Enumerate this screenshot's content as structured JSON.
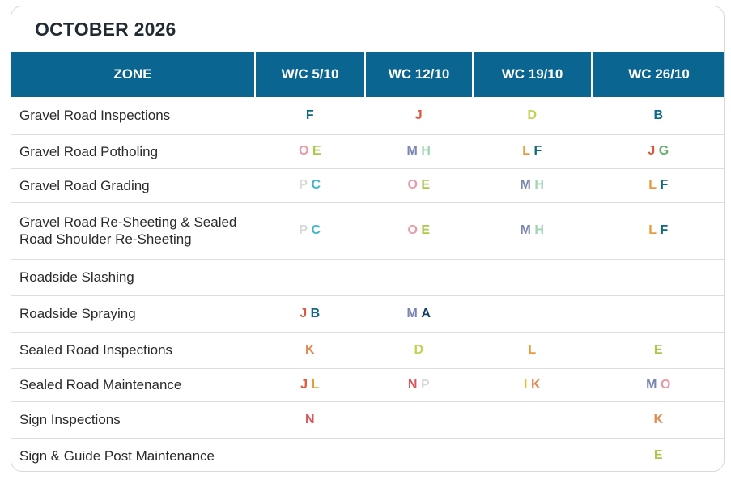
{
  "title": "OCTOBER 2026",
  "columns": [
    "ZONE",
    "W/C 5/10",
    "WC 12/10",
    "WC 19/10",
    "WC 26/10"
  ],
  "zone_colors": {
    "A": "#123c6a",
    "B": "#0d6a86",
    "C": "#3bb7c9",
    "D": "#c4d14f",
    "E": "#aac84a",
    "F": "#0e6a7a",
    "G": "#62b06b",
    "H": "#9ed6b2",
    "I": "#e8c12c",
    "J": "#e0573b",
    "K": "#e08a52",
    "L": "#e89b3c",
    "M": "#7a84b2",
    "N": "#d8585e",
    "O": "#e99aa4",
    "P": "#d9d9d9"
  },
  "rows": [
    {
      "task": "Gravel Road Inspections",
      "cells": [
        [
          "F"
        ],
        [
          "J"
        ],
        [
          "D"
        ],
        [
          "B"
        ]
      ]
    },
    {
      "task": "Gravel Road Potholing",
      "cells": [
        [
          "O",
          "E"
        ],
        [
          "M",
          "H"
        ],
        [
          "L",
          "F"
        ],
        [
          "J",
          "G"
        ]
      ]
    },
    {
      "task": "Gravel Road Grading",
      "cells": [
        [
          "P",
          "C"
        ],
        [
          "O",
          "E"
        ],
        [
          "M",
          "H"
        ],
        [
          "L",
          "F"
        ]
      ]
    },
    {
      "task": "Gravel Road Re-Sheeting & Sealed Road Shoulder Re-Sheeting",
      "cells": [
        [
          "P",
          "C"
        ],
        [
          "O",
          "E"
        ],
        [
          "M",
          "H"
        ],
        [
          "L",
          "F"
        ]
      ]
    },
    {
      "task": "Roadside Slashing",
      "cells": [
        [],
        [],
        [],
        []
      ]
    },
    {
      "task": "Roadside Spraying",
      "cells": [
        [
          "J",
          "B"
        ],
        [
          "M",
          "A"
        ],
        [],
        []
      ]
    },
    {
      "task": "Sealed Road Inspections",
      "cells": [
        [
          "K"
        ],
        [
          "D"
        ],
        [
          "L"
        ],
        [
          "E"
        ]
      ]
    },
    {
      "task": "Sealed Road Maintenance",
      "cells": [
        [
          "J",
          "L"
        ],
        [
          "N",
          "P"
        ],
        [
          "I",
          "K"
        ],
        [
          "M",
          "O"
        ]
      ]
    },
    {
      "task": "Sign Inspections",
      "cells": [
        [
          "N"
        ],
        [],
        [],
        [
          "K"
        ]
      ]
    },
    {
      "task": "Sign & Guide Post Maintenance",
      "cells": [
        [],
        [],
        [],
        [
          "E"
        ]
      ]
    }
  ]
}
